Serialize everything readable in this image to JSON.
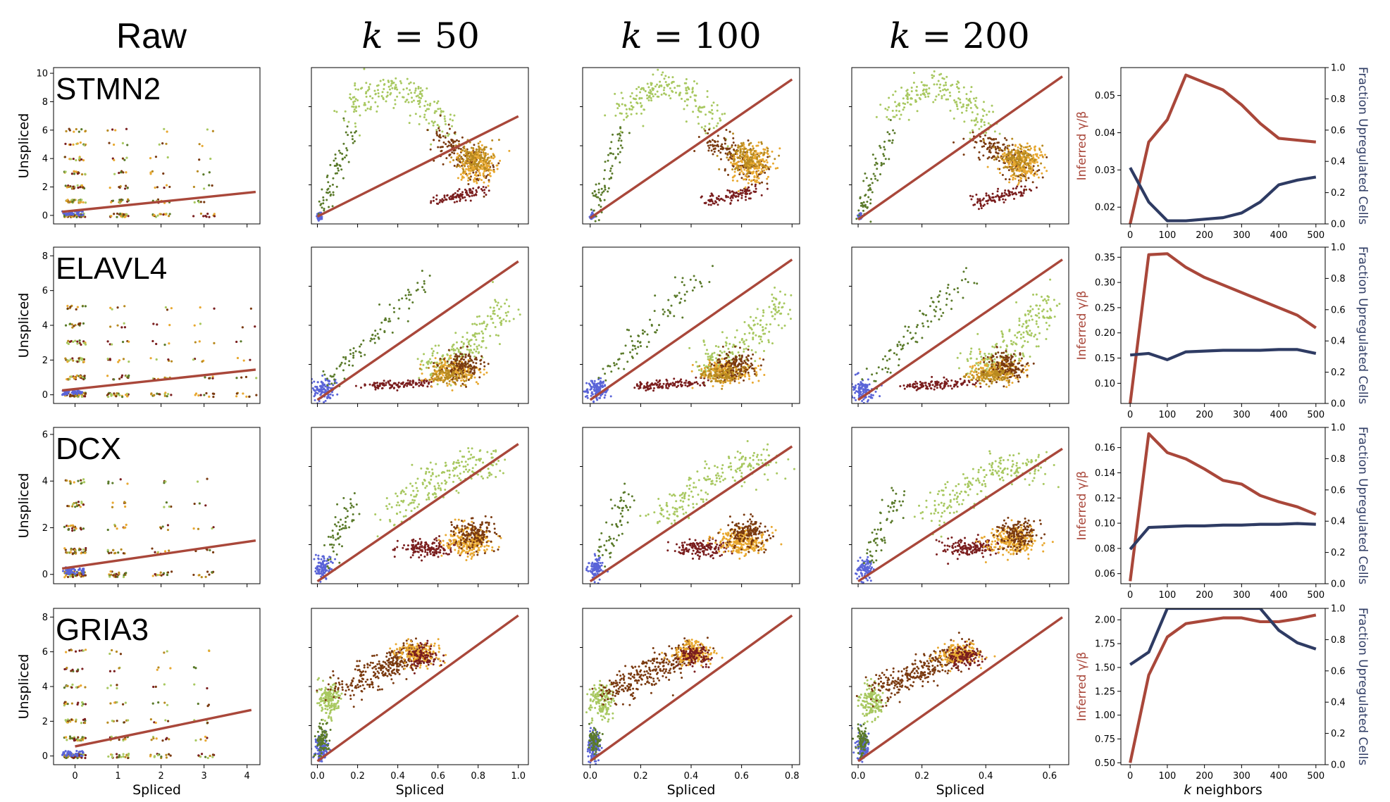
{
  "figure": {
    "column_titles": [
      "Raw",
      "k = 50",
      "k = 100",
      "k = 200"
    ],
    "colors": {
      "fit_line": "#a9473a",
      "fraction_line": "#2e3b63",
      "cluster_palette": [
        "#5a64d8",
        "#5a7a2a",
        "#a8c860",
        "#7a3a10",
        "#e8a830",
        "#7a1e1e",
        "#b88a20"
      ]
    },
    "labels": {
      "unspliced": "Unspliced",
      "spliced": "Spliced",
      "inferred": "Inferred γ/β",
      "fraction": "Fraction Upregulated Cells",
      "k_neighbors": "k neighbors"
    }
  },
  "chart_data": [
    {
      "gene": "STMN2",
      "panels": [
        {
          "type": "scatter",
          "column": "Raw",
          "xlim": [
            -0.5,
            4.3
          ],
          "ylim": [
            -0.6,
            10.4
          ],
          "xticks": [
            0,
            1,
            2,
            3,
            4
          ],
          "yticks": [
            0,
            2,
            4,
            6,
            8,
            10
          ],
          "fit_line": [
            [
              -0.3,
              0.25
            ],
            [
              4.2,
              1.65
            ]
          ],
          "discrete": true,
          "ymax_pts": 6,
          "xmax_pts": 3
        },
        {
          "type": "scatter",
          "column": "k = 50",
          "xlim": [
            -0.03,
            1.05
          ],
          "ylim": [
            -0.3,
            10.3
          ],
          "fit_line": [
            [
              0.0,
              0.2
            ],
            [
              1.0,
              7.0
            ]
          ],
          "shape": "stmn2",
          "sx": 1.0,
          "sy": 1.0
        },
        {
          "type": "scatter",
          "column": "k = 100",
          "xlim": [
            -0.03,
            0.83
          ],
          "ylim": [
            -0.3,
            10.3
          ],
          "fit_line": [
            [
              0.0,
              0.1
            ],
            [
              0.8,
              9.5
            ]
          ],
          "shape": "stmn2",
          "sx": 0.8,
          "sy": 1.0
        },
        {
          "type": "scatter",
          "column": "k = 200",
          "xlim": [
            -0.02,
            0.66
          ],
          "ylim": [
            -0.3,
            10.3
          ],
          "fit_line": [
            [
              0.0,
              0.0
            ],
            [
              0.64,
              9.7
            ]
          ],
          "shape": "stmn2",
          "sx": 0.64,
          "sy": 1.0
        },
        {
          "type": "line",
          "x": [
            0,
            50,
            100,
            150,
            200,
            250,
            300,
            350,
            400,
            450,
            500
          ],
          "inferred": [
            0.0155,
            0.0375,
            0.0435,
            0.0555,
            0.0535,
            0.0515,
            0.0475,
            0.0425,
            0.0385,
            0.038,
            0.0375
          ],
          "fraction": [
            0.36,
            0.14,
            0.02,
            0.02,
            0.03,
            0.04,
            0.07,
            0.14,
            0.25,
            0.28,
            0.3
          ],
          "ylim_left": [
            0.0155,
            0.0575
          ],
          "yticks_left": [
            0.02,
            0.03,
            0.04,
            0.05
          ],
          "left_decimals": 2
        }
      ]
    },
    {
      "gene": "ELAVL4",
      "panels": [
        {
          "type": "scatter",
          "column": "Raw",
          "xlim": [
            -0.5,
            4.3
          ],
          "ylim": [
            -0.5,
            8.5
          ],
          "xticks": [
            0,
            1,
            2,
            3,
            4
          ],
          "yticks": [
            0,
            2,
            4,
            6,
            8
          ],
          "fit_line": [
            [
              -0.3,
              0.25
            ],
            [
              4.2,
              1.45
            ]
          ],
          "discrete": true,
          "ymax_pts": 5,
          "xmax_pts": 4
        },
        {
          "type": "scatter",
          "column": "k = 50",
          "xlim": [
            -0.03,
            1.05
          ],
          "ylim": [
            -0.4,
            8.4
          ],
          "fit_line": [
            [
              0.0,
              -0.2
            ],
            [
              1.0,
              7.6
            ]
          ],
          "shape": "elavl4",
          "sx": 1.0,
          "sy": 1.0
        },
        {
          "type": "scatter",
          "column": "k = 100",
          "xlim": [
            -0.03,
            0.83
          ],
          "ylim": [
            -0.4,
            8.4
          ],
          "fit_line": [
            [
              0.0,
              -0.2
            ],
            [
              0.8,
              7.7
            ]
          ],
          "shape": "elavl4",
          "sx": 0.8,
          "sy": 1.0
        },
        {
          "type": "scatter",
          "column": "k = 200",
          "xlim": [
            -0.02,
            0.66
          ],
          "ylim": [
            -0.4,
            8.4
          ],
          "fit_line": [
            [
              0.0,
              -0.2
            ],
            [
              0.64,
              7.7
            ]
          ],
          "shape": "elavl4",
          "sx": 0.64,
          "sy": 1.0
        },
        {
          "type": "line",
          "x": [
            0,
            50,
            100,
            150,
            200,
            250,
            300,
            350,
            400,
            450,
            500
          ],
          "inferred": [
            0.06,
            0.355,
            0.357,
            0.33,
            0.31,
            0.295,
            0.28,
            0.265,
            0.25,
            0.235,
            0.21
          ],
          "fraction": [
            0.31,
            0.32,
            0.28,
            0.33,
            0.335,
            0.34,
            0.34,
            0.34,
            0.345,
            0.345,
            0.32
          ],
          "ylim_left": [
            0.06,
            0.37
          ],
          "yticks_left": [
            0.1,
            0.15,
            0.2,
            0.25,
            0.3,
            0.35
          ],
          "left_decimals": 2
        }
      ]
    },
    {
      "gene": "DCX",
      "panels": [
        {
          "type": "scatter",
          "column": "Raw",
          "xlim": [
            -0.5,
            4.3
          ],
          "ylim": [
            -0.4,
            6.3
          ],
          "xticks": [
            0,
            1,
            2,
            3,
            4
          ],
          "yticks": [
            0,
            2,
            4,
            6
          ],
          "fit_line": [
            [
              -0.3,
              0.25
            ],
            [
              4.2,
              1.45
            ]
          ],
          "discrete": true,
          "ymax_pts": 4,
          "xmax_pts": 3
        },
        {
          "type": "scatter",
          "column": "k = 50",
          "xlim": [
            -0.03,
            1.05
          ],
          "ylim": [
            -0.3,
            6.3
          ],
          "fit_line": [
            [
              0.0,
              -0.2
            ],
            [
              1.0,
              5.6
            ]
          ],
          "shape": "dcx",
          "sx": 1.0,
          "sy": 1.0
        },
        {
          "type": "scatter",
          "column": "k = 100",
          "xlim": [
            -0.03,
            0.83
          ],
          "ylim": [
            -0.3,
            6.3
          ],
          "fit_line": [
            [
              0.0,
              -0.2
            ],
            [
              0.8,
              5.5
            ]
          ],
          "shape": "dcx",
          "sx": 0.8,
          "sy": 1.0
        },
        {
          "type": "scatter",
          "column": "k = 200",
          "xlim": [
            -0.02,
            0.66
          ],
          "ylim": [
            -0.3,
            6.3
          ],
          "fit_line": [
            [
              0.0,
              -0.2
            ],
            [
              0.64,
              5.4
            ]
          ],
          "shape": "dcx",
          "sx": 0.64,
          "sy": 1.0
        },
        {
          "type": "line",
          "x": [
            0,
            50,
            100,
            150,
            200,
            250,
            300,
            350,
            400,
            450,
            500
          ],
          "inferred": [
            0.054,
            0.171,
            0.156,
            0.151,
            0.143,
            0.134,
            0.131,
            0.122,
            0.117,
            0.113,
            0.107
          ],
          "fraction": [
            0.22,
            0.36,
            0.365,
            0.37,
            0.37,
            0.375,
            0.375,
            0.38,
            0.38,
            0.385,
            0.38
          ],
          "ylim_left": [
            0.052,
            0.176
          ],
          "yticks_left": [
            0.06,
            0.08,
            0.1,
            0.12,
            0.14,
            0.16
          ],
          "left_decimals": 2
        }
      ]
    },
    {
      "gene": "GRIA3",
      "panels": [
        {
          "type": "scatter",
          "column": "Raw",
          "xlim": [
            -0.5,
            4.3
          ],
          "ylim": [
            -0.5,
            8.5
          ],
          "xticks": [
            0,
            1,
            2,
            3,
            4
          ],
          "yticks": [
            0,
            2,
            4,
            6,
            8
          ],
          "fit_line": [
            [
              0.0,
              0.55
            ],
            [
              4.1,
              2.65
            ]
          ],
          "discrete": true,
          "ymax_pts": 6,
          "xmax_pts": 3
        },
        {
          "type": "scatter",
          "column": "k = 50",
          "xlim": [
            -0.03,
            1.05
          ],
          "ylim": [
            -0.4,
            8.4
          ],
          "fit_line": [
            [
              0.0,
              -0.2
            ],
            [
              1.0,
              8.0
            ]
          ],
          "shape": "gria3",
          "sx": 1.0,
          "sy": 1.0
        },
        {
          "type": "scatter",
          "column": "k = 100",
          "xlim": [
            -0.03,
            0.83
          ],
          "ylim": [
            -0.4,
            8.4
          ],
          "fit_line": [
            [
              0.0,
              -0.2
            ],
            [
              0.8,
              8.0
            ]
          ],
          "shape": "gria3",
          "sx": 0.8,
          "sy": 1.0
        },
        {
          "type": "scatter",
          "column": "k = 200",
          "xlim": [
            -0.02,
            0.66
          ],
          "ylim": [
            -0.4,
            8.4
          ],
          "fit_line": [
            [
              0.0,
              -0.2
            ],
            [
              0.64,
              7.9
            ]
          ],
          "shape": "gria3",
          "sx": 0.64,
          "sy": 1.0
        },
        {
          "type": "line",
          "x": [
            0,
            50,
            100,
            150,
            200,
            250,
            300,
            350,
            400,
            450,
            500
          ],
          "inferred": [
            0.5,
            1.42,
            1.82,
            1.96,
            1.99,
            2.02,
            2.02,
            1.98,
            1.98,
            2.01,
            2.05
          ],
          "fraction": [
            0.64,
            0.72,
            1.0,
            1.0,
            1.0,
            1.0,
            1.0,
            1.0,
            0.86,
            0.78,
            0.74
          ],
          "ylim_left": [
            0.48,
            2.12
          ],
          "yticks_left": [
            0.5,
            0.75,
            1.0,
            1.25,
            1.5,
            1.75,
            2.0
          ],
          "left_decimals": 2
        }
      ]
    }
  ]
}
